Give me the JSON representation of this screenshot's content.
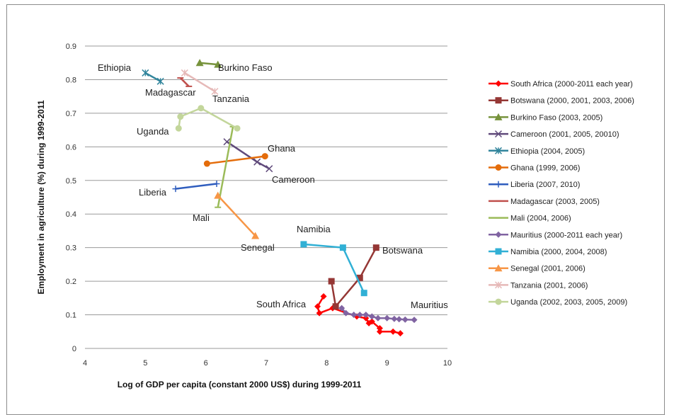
{
  "chart_data": {
    "type": "line",
    "title": "",
    "xlabel": "Log of GDP per capita (constant 2000  US$) during 1999-2011",
    "ylabel": "Employment in agriculture (%) during 1999-2011",
    "xlim": [
      4,
      10
    ],
    "ylim": [
      0,
      0.9
    ],
    "x_ticks": [
      "4",
      "5",
      "6",
      "7",
      "8",
      "9",
      "10"
    ],
    "y_ticks": [
      "0",
      "0.1",
      "0.2",
      "0.3",
      "0.4",
      "0.5",
      "0.6",
      "0.7",
      "0.8",
      "0.9"
    ],
    "grid": "horizontal",
    "legend_position": "right",
    "series": [
      {
        "name": "South Africa (2000-2011 each year)",
        "color": "#ff0000",
        "marker": "diamond",
        "label": "South Africa",
        "points": [
          [
            7.95,
            0.155
          ],
          [
            7.85,
            0.125
          ],
          [
            7.88,
            0.105
          ],
          [
            8.1,
            0.12
          ],
          [
            8.5,
            0.095
          ],
          [
            8.65,
            0.09
          ],
          [
            8.7,
            0.075
          ],
          [
            8.75,
            0.08
          ],
          [
            8.88,
            0.06
          ],
          [
            8.88,
            0.05
          ],
          [
            9.1,
            0.05
          ],
          [
            9.22,
            0.045
          ]
        ]
      },
      {
        "name": "Botswana (2000, 2001, 2003, 2006)",
        "color": "#953735",
        "marker": "square",
        "label": "Botswana",
        "points": [
          [
            8.08,
            0.2
          ],
          [
            8.15,
            0.125
          ],
          [
            8.55,
            0.21
          ],
          [
            8.82,
            0.3
          ]
        ]
      },
      {
        "name": "Burkino Faso (2003, 2005)",
        "color": "#77933c",
        "marker": "triangle",
        "label": "Burkino Faso",
        "points": [
          [
            5.9,
            0.85
          ],
          [
            6.2,
            0.845
          ]
        ]
      },
      {
        "name": "Cameroon (2001, 2005, 20010)",
        "color": "#604a7b",
        "marker": "x",
        "label": "Cameroon",
        "points": [
          [
            6.35,
            0.615
          ],
          [
            6.85,
            0.555
          ],
          [
            7.05,
            0.535
          ]
        ]
      },
      {
        "name": "Ethiopia (2004, 2005)",
        "color": "#31859c",
        "marker": "asterisk",
        "label": "Ethiopia",
        "points": [
          [
            5.0,
            0.82
          ],
          [
            5.25,
            0.795
          ]
        ]
      },
      {
        "name": "Ghana (1999, 2006)",
        "color": "#e46c0a",
        "marker": "circle",
        "label": "Ghana",
        "points": [
          [
            6.02,
            0.55
          ],
          [
            6.98,
            0.572
          ]
        ]
      },
      {
        "name": "Liberia (2007, 2010)",
        "color": "#2f5dbe",
        "marker": "plus",
        "label": "Liberia",
        "points": [
          [
            5.5,
            0.475
          ],
          [
            6.18,
            0.49
          ]
        ]
      },
      {
        "name": "Madagascar (2003, 2005)",
        "color": "#c0504d",
        "marker": "dash",
        "label": "Madagascar",
        "points": [
          [
            5.58,
            0.805
          ],
          [
            5.72,
            0.78
          ]
        ]
      },
      {
        "name": "Mali (2004, 2006)",
        "color": "#9bbb59",
        "marker": "dash",
        "label": "Mali",
        "points": [
          [
            6.2,
            0.42
          ],
          [
            6.45,
            0.66
          ]
        ]
      },
      {
        "name": "Mauritius (2000-2011 each year)",
        "color": "#8064a2",
        "marker": "diamond",
        "label": "Mauritius",
        "points": [
          [
            8.25,
            0.12
          ],
          [
            8.32,
            0.105
          ],
          [
            8.45,
            0.1
          ],
          [
            8.55,
            0.1
          ],
          [
            8.65,
            0.1
          ],
          [
            8.75,
            0.095
          ],
          [
            8.85,
            0.09
          ],
          [
            9.0,
            0.09
          ],
          [
            9.12,
            0.088
          ],
          [
            9.2,
            0.087
          ],
          [
            9.3,
            0.086
          ],
          [
            9.45,
            0.085
          ]
        ]
      },
      {
        "name": "Namibia (2000, 2004, 2008)",
        "color": "#31b0d5",
        "marker": "square",
        "label": "Namibia",
        "points": [
          [
            7.62,
            0.31
          ],
          [
            8.27,
            0.3
          ],
          [
            8.62,
            0.165
          ]
        ]
      },
      {
        "name": "Senegal (2001, 2006)",
        "color": "#f79646",
        "marker": "triangle",
        "label": "Senegal",
        "points": [
          [
            6.2,
            0.455
          ],
          [
            6.82,
            0.335
          ]
        ]
      },
      {
        "name": "Tanzania (2001, 2006)",
        "color": "#e6b9b8",
        "marker": "asterisk",
        "label": "Tanzania",
        "points": [
          [
            5.65,
            0.82
          ],
          [
            6.15,
            0.765
          ]
        ]
      },
      {
        "name": "Uganda (2002, 2003, 2005, 2009)",
        "color": "#c3d69b",
        "marker": "circle",
        "label": "Uganda",
        "points": [
          [
            5.55,
            0.655
          ],
          [
            5.58,
            0.69
          ],
          [
            5.92,
            0.715
          ],
          [
            6.52,
            0.655
          ]
        ]
      }
    ]
  }
}
